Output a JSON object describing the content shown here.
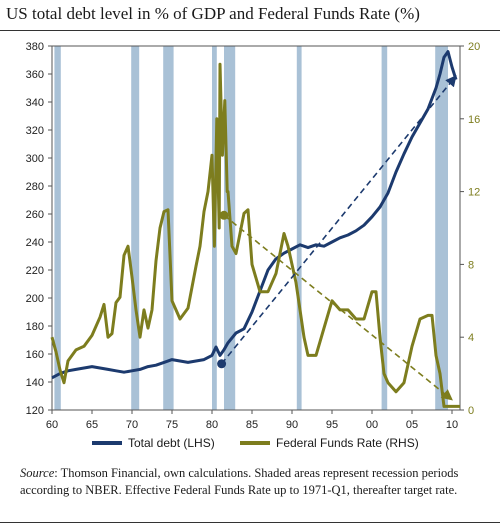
{
  "title": "US total debt level in % of GDP and Federal Funds Rate (%)",
  "note": {
    "source_label": "Source",
    "text": ": Thomson Financial, own calculations. Shaded areas represent recession periods according to NBER. Effective Federal Funds Rate up to 1971-Q1, thereafter target rate."
  },
  "colors": {
    "debt": "#1c3a6e",
    "fed": "#7d7d1e",
    "recession": "#a9c1d6"
  },
  "chart_data": {
    "type": "line",
    "title": "US total debt level in % of GDP and Federal Funds Rate (%)",
    "x_ticks": [
      "60",
      "65",
      "70",
      "75",
      "80",
      "85",
      "90",
      "95",
      "00",
      "05",
      "10"
    ],
    "x_range": [
      1960,
      2011
    ],
    "y_left": {
      "range": [
        120,
        380
      ],
      "ticks": [
        120,
        140,
        160,
        180,
        200,
        220,
        240,
        260,
        280,
        300,
        320,
        340,
        360,
        380
      ]
    },
    "y_right": {
      "range": [
        0,
        20
      ],
      "ticks": [
        0,
        4,
        8,
        12,
        16,
        20
      ]
    },
    "recessions": [
      [
        1960.3,
        1961.1
      ],
      [
        1969.9,
        1970.9
      ],
      [
        1973.9,
        1975.2
      ],
      [
        1980.0,
        1980.6
      ],
      [
        1981.5,
        1982.9
      ],
      [
        1990.6,
        1991.2
      ],
      [
        2001.2,
        2001.9
      ],
      [
        2007.9,
        2009.5
      ]
    ],
    "series": [
      {
        "name": "Total debt (LHS)",
        "axis": "left",
        "x": [
          1960,
          1961,
          1962,
          1963,
          1964,
          1965,
          1966,
          1967,
          1968,
          1969,
          1970,
          1971,
          1972,
          1973,
          1974,
          1975,
          1976,
          1977,
          1978,
          1979,
          1980,
          1980.5,
          1981,
          1981.5,
          1982,
          1983,
          1984,
          1985,
          1986,
          1987,
          1988,
          1989,
          1990,
          1991,
          1992,
          1993,
          1994,
          1995,
          1996,
          1997,
          1998,
          1999,
          2000,
          2001,
          2002,
          2003,
          2004,
          2005,
          2006,
          2007,
          2008,
          2008.5,
          2009,
          2009.5,
          2010,
          2010.5
        ],
        "y": [
          143,
          146,
          148,
          149,
          150,
          151,
          150,
          149,
          148,
          147,
          148,
          149,
          151,
          152,
          154,
          156,
          155,
          154,
          155,
          156,
          159,
          165,
          159,
          163,
          168,
          175,
          178,
          190,
          205,
          220,
          228,
          232,
          235,
          238,
          236,
          238,
          237,
          240,
          243,
          245,
          248,
          252,
          258,
          265,
          275,
          290,
          303,
          315,
          325,
          335,
          350,
          360,
          372,
          376,
          365,
          356
        ]
      },
      {
        "name": "Federal Funds Rate (RHS)",
        "axis": "right",
        "x": [
          1960,
          1960.5,
          1961,
          1961.5,
          1962,
          1963,
          1964,
          1965,
          1966,
          1966.5,
          1967,
          1967.5,
          1968,
          1968.5,
          1969,
          1969.5,
          1970,
          1970.5,
          1971,
          1971.5,
          1972,
          1972.5,
          1973,
          1973.5,
          1974,
          1974.5,
          1975,
          1975.5,
          1976,
          1977,
          1978,
          1978.5,
          1979,
          1979.5,
          1980,
          1980.3,
          1980.6,
          1980.9,
          1981,
          1981.3,
          1981.6,
          1981.9,
          1982,
          1982.5,
          1983,
          1984,
          1984.5,
          1985,
          1986,
          1987,
          1988,
          1989,
          1989.5,
          1990,
          1990.5,
          1991,
          1991.5,
          1992,
          1993,
          1994,
          1995,
          1996,
          1997,
          1998,
          1999,
          2000,
          2000.5,
          2001,
          2001.5,
          2002,
          2003,
          2004,
          2005,
          2006,
          2007,
          2007.5,
          2008,
          2008.5,
          2009,
          2010,
          2011
        ],
        "y": [
          4,
          3.2,
          2.2,
          1.5,
          2.7,
          3.3,
          3.5,
          4.1,
          5.1,
          5.8,
          4,
          4.2,
          5.9,
          6.2,
          8.5,
          9,
          7.3,
          5.5,
          4,
          5.5,
          4.5,
          5.5,
          8.2,
          10,
          10.9,
          11,
          6,
          5.5,
          5,
          5.6,
          7.9,
          9,
          10.9,
          12,
          14,
          9,
          16,
          10,
          19,
          14,
          17,
          12,
          12,
          9,
          8.6,
          10.8,
          11,
          8,
          6.5,
          6.5,
          7.5,
          9.7,
          9,
          8,
          7,
          5.5,
          4,
          3,
          3,
          4.5,
          6,
          5.5,
          5.5,
          5,
          5,
          6.5,
          6.5,
          4,
          2,
          1.5,
          1,
          1.5,
          3.5,
          5,
          5.2,
          5.2,
          3,
          2,
          0.2,
          0.2,
          0.2
        ]
      }
    ],
    "trendlines": [
      {
        "axis": "left",
        "from": [
          1981.2,
          153
        ],
        "to": [
          2010.4,
          358
        ]
      },
      {
        "axis": "right",
        "from": [
          1981.5,
          10.7
        ],
        "to": [
          2009.9,
          0.6
        ]
      }
    ]
  },
  "legend": [
    {
      "label": "Total debt (LHS)",
      "color": "#1c3a6e"
    },
    {
      "label": "Federal Funds Rate (RHS)",
      "color": "#7d7d1e"
    }
  ]
}
